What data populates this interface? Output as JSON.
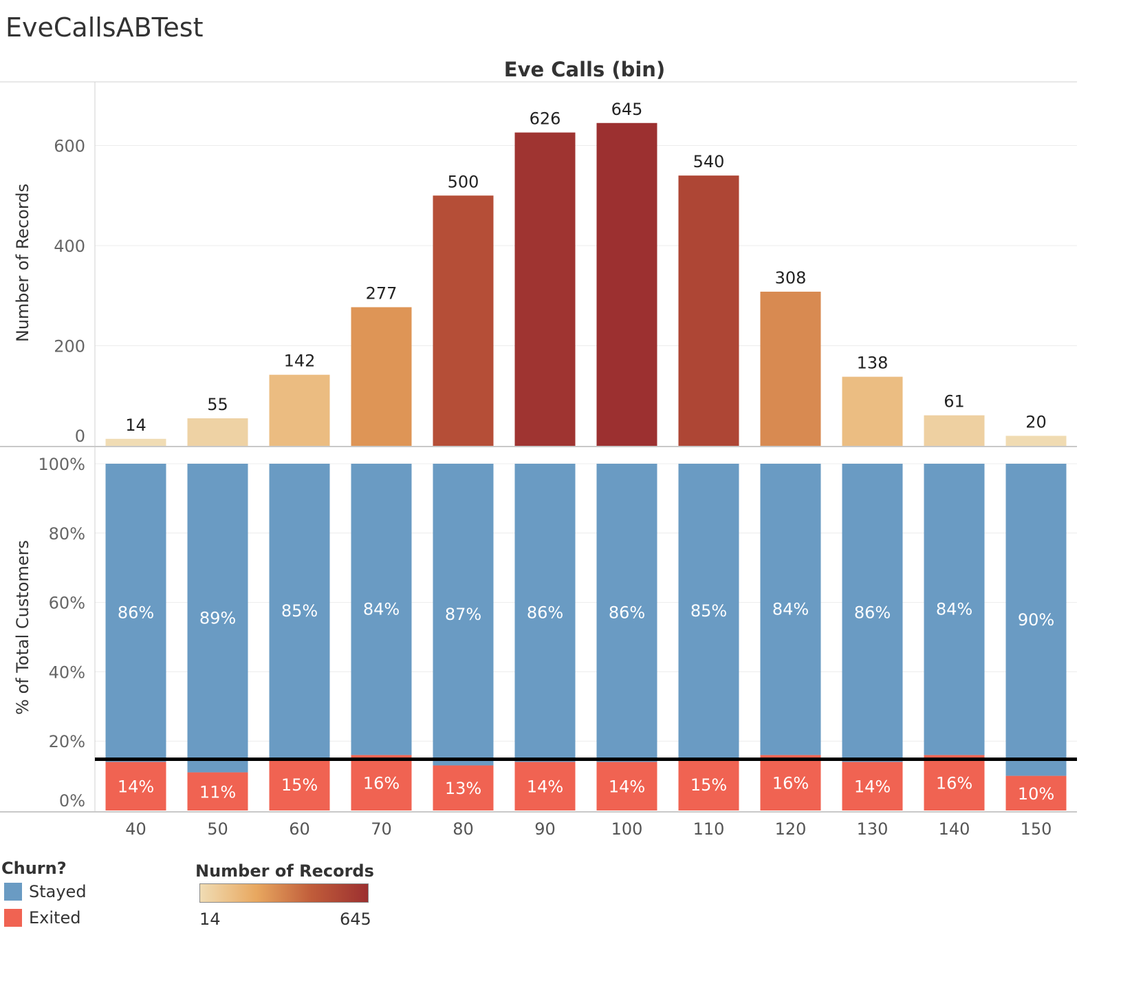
{
  "dashboard": {
    "title": "EveCallsABTest"
  },
  "chart_data": [
    {
      "type": "bar",
      "title": "Eve Calls (bin)",
      "xlabel": "",
      "ylabel": "Number of Records",
      "categories": [
        "40",
        "50",
        "60",
        "70",
        "80",
        "90",
        "100",
        "110",
        "120",
        "130",
        "140",
        "150"
      ],
      "values": [
        14,
        55,
        142,
        277,
        500,
        626,
        645,
        540,
        308,
        138,
        61,
        20
      ],
      "yticks": [
        "0",
        "200",
        "400",
        "600"
      ],
      "ylim": [
        0,
        690
      ],
      "grid": true
    },
    {
      "type": "bar",
      "stacked": true,
      "normalized": true,
      "xlabel": "",
      "ylabel": "% of Total Customers",
      "categories": [
        "40",
        "50",
        "60",
        "70",
        "80",
        "90",
        "100",
        "110",
        "120",
        "130",
        "140",
        "150"
      ],
      "series": [
        {
          "name": "Stayed",
          "values": [
            86,
            89,
            85,
            84,
            87,
            86,
            86,
            85,
            84,
            86,
            84,
            90
          ],
          "labels": [
            "86%",
            "89%",
            "85%",
            "84%",
            "87%",
            "86%",
            "86%",
            "85%",
            "84%",
            "86%",
            "84%",
            "90%"
          ]
        },
        {
          "name": "Exited",
          "values": [
            14,
            11,
            15,
            16,
            13,
            14,
            14,
            15,
            16,
            14,
            16,
            10
          ],
          "labels": [
            "14%",
            "11%",
            "15%",
            "16%",
            "13%",
            "14%",
            "14%",
            "15%",
            "16%",
            "14%",
            "16%",
            "10%"
          ]
        }
      ],
      "yticks": [
        "0%",
        "20%",
        "40%",
        "60%",
        "80%",
        "100%"
      ],
      "ylim": [
        0,
        100
      ],
      "reference_line": 14,
      "grid": true
    }
  ],
  "legend": {
    "churn": {
      "title": "Churn?",
      "items": [
        {
          "label": "Stayed",
          "color": "#6a9bc3"
        },
        {
          "label": "Exited",
          "color": "#f06352"
        }
      ]
    },
    "records": {
      "title": "Number of Records",
      "min": "14",
      "max": "645",
      "colors": [
        "#f0dcb4",
        "#e8a860",
        "#c05c3a",
        "#9c3030"
      ]
    }
  }
}
